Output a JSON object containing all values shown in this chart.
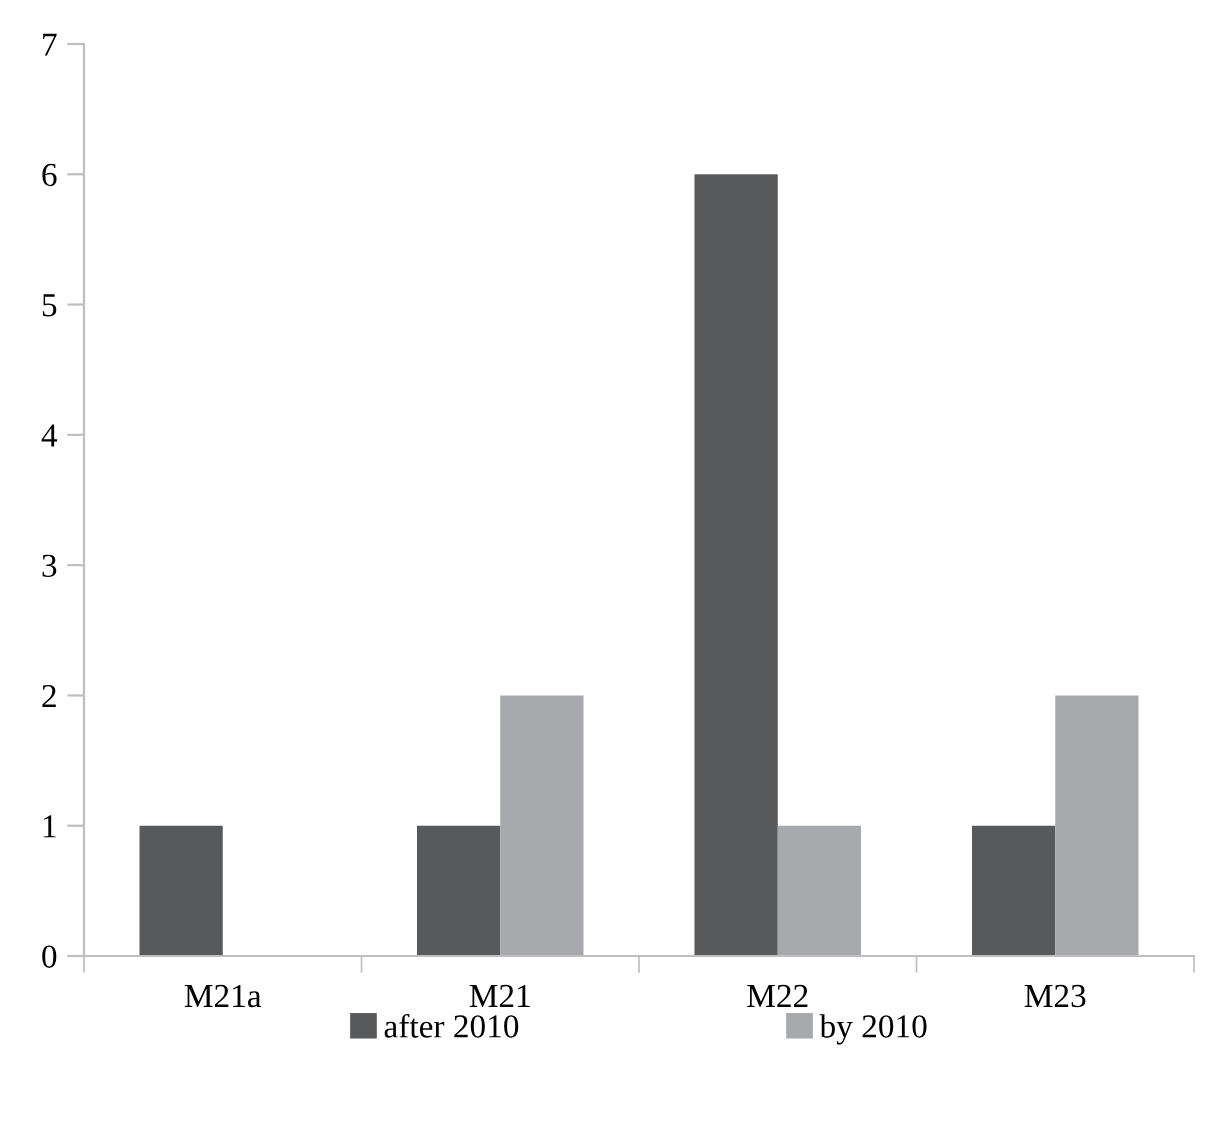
{
  "chart_data": {
    "type": "bar",
    "categories": [
      "M21a",
      "M21",
      "M22",
      "M23"
    ],
    "series": [
      {
        "name": "after 2010",
        "color": "#58595b",
        "values": [
          1,
          1,
          6,
          1
        ]
      },
      {
        "name": "by 2010",
        "color": "#a7a9ac",
        "values": [
          null,
          2,
          1,
          2
        ]
      }
    ],
    "ylim": [
      0,
      7
    ],
    "yticks": [
      0,
      1,
      2,
      3,
      4,
      5,
      6,
      7
    ],
    "grid": false,
    "legend": "bottom"
  }
}
